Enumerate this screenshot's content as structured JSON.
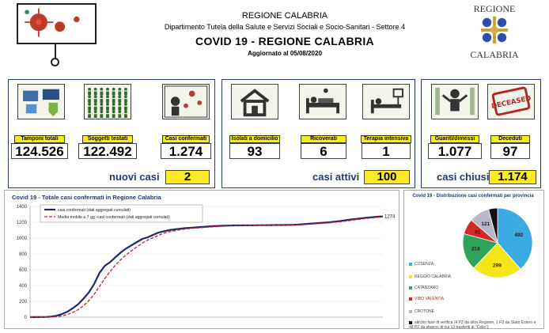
{
  "header": {
    "line1": "REGIONE CALABRIA",
    "line2": "Dipartimento Tutela della Salute e Servizi Sociali e Socio-Sanitari - Settore 4",
    "title": "COVID 19 - REGIONE CALABRIA",
    "updated": "Aggiornato al  05/08/2020",
    "logo_top": "REGIONE",
    "logo_bottom": "CALABRIA"
  },
  "stats": [
    {
      "label": "Tamponi totali",
      "value": "124.526"
    },
    {
      "label": "Soggetti testati",
      "value": "122.492"
    },
    {
      "label": "Casi confermati",
      "value": "1.274"
    },
    {
      "label": "Isolati a domicilio",
      "value": "93"
    },
    {
      "label": "Ricoverati",
      "value": "6"
    },
    {
      "label": "Terapia intensiva",
      "value": "1"
    },
    {
      "label": "Guariti/dimessi",
      "value": "1.077"
    },
    {
      "label": "Deceduti",
      "value": "97"
    }
  ],
  "summary": {
    "new_label": "nuovi casi",
    "new_value": "2",
    "active_label": "casi attivi",
    "active_value": "100",
    "closed_label": "casi chiusi",
    "closed_value": "1.174"
  },
  "icons": [
    "test-kit-icon",
    "people-grid-icon",
    "virus-person-icon",
    "house-icon",
    "hospital-bed-icon",
    "intensive-care-icon",
    "recovered-person-icon",
    "deceased-stamp-icon"
  ],
  "colors": {
    "accent": "#f6ee10",
    "navy": "#1f3a6e",
    "deceased": "#b3261e"
  },
  "chart_data": {
    "type": "line",
    "title": "Covid 19 - Totale casi confermati in Regione Calabria",
    "series": [
      {
        "name": "casi confermati (dati aggregati cumulati)",
        "color": "#1f2a6b",
        "values": [
          0,
          1,
          2,
          3,
          8,
          19,
          40,
          70,
          114,
          163,
          235,
          313,
          421,
          560,
          650,
          697,
          760,
          820,
          870,
          910,
          950,
          990,
          1010,
          1040,
          1070,
          1085,
          1100,
          1110,
          1118,
          1125,
          1130,
          1135,
          1140,
          1145,
          1150,
          1153,
          1156,
          1158,
          1160,
          1160,
          1161,
          1162,
          1162,
          1163,
          1163,
          1164,
          1165,
          1165,
          1166,
          1167,
          1170,
          1175,
          1180,
          1185,
          1190,
          1195,
          1200,
          1208,
          1215,
          1225,
          1235,
          1242,
          1250,
          1258,
          1264,
          1270,
          1274
        ]
      },
      {
        "name": "Media mobile a 7 gg -casi confermati (dati aggregati cumulati)",
        "color": "#c0202a",
        "values": [
          0,
          0,
          1,
          2,
          4,
          8,
          16,
          33,
          60,
          95,
          145,
          210,
          290,
          390,
          490,
          580,
          660,
          730,
          790,
          840,
          890,
          935,
          975,
          1005,
          1035,
          1060,
          1078,
          1092,
          1104,
          1114,
          1121,
          1127,
          1132,
          1137,
          1142,
          1146,
          1150,
          1153,
          1156,
          1158,
          1159,
          1160,
          1161,
          1162,
          1162,
          1163,
          1163,
          1164,
          1164,
          1165,
          1166,
          1169,
          1173,
          1178,
          1183,
          1188,
          1193,
          1200,
          1207,
          1215,
          1224,
          1233,
          1241,
          1249,
          1256,
          1263,
          1269
        ]
      }
    ],
    "y_ticks": [
      "0",
      "200",
      "400",
      "600",
      "800",
      "1000",
      "1200",
      "1400"
    ],
    "ylim": [
      0,
      1400
    ],
    "end_label": "1274",
    "legend_position": "top"
  },
  "pie_data": {
    "title": "Covid 19 - Distribuzione casi confermati per provincia",
    "slices": [
      {
        "name": "COSENZA",
        "value": 492,
        "color": "#3aa9e4"
      },
      {
        "name": "REGGIO CALABRIA",
        "value": 299,
        "color": "#f5e619"
      },
      {
        "name": "CATANZARO",
        "value": 218,
        "color": "#2ea35a"
      },
      {
        "name": "VIBO VALENTIA",
        "value": 91,
        "color": "#d62828"
      },
      {
        "name": "CROTONE",
        "value": 121,
        "color": "#b7b7c9"
      },
      {
        "name": "altro/in fase di verifica (4 PZ da altra Regione, 1 PZ da Stato Estero e 48 PZ da sbarco, di cui 13 trasferiti al \"Celio\")",
        "value": 53,
        "color": "#111111"
      }
    ]
  }
}
